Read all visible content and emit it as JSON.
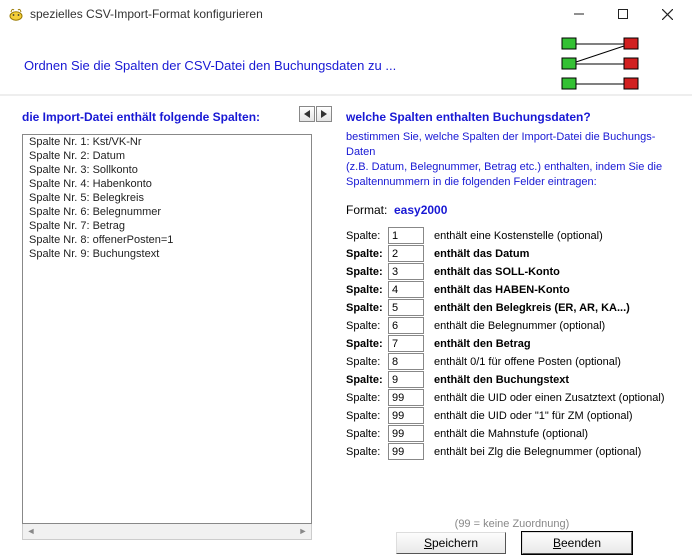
{
  "window": {
    "title": "spezielles CSV-Import-Format konfigurieren",
    "instruction": "Ordnen Sie die Spalten der CSV-Datei den Buchungsdaten zu ..."
  },
  "left": {
    "title": "die Import-Datei enthält folgende Spalten:",
    "items": [
      "Spalte Nr. 1: Kst/VK-Nr",
      "Spalte Nr. 2: Datum",
      "Spalte Nr. 3: Sollkonto",
      "Spalte Nr. 4: Habenkonto",
      "Spalte Nr. 5: Belegkreis",
      "Spalte Nr. 6: Belegnummer",
      "Spalte Nr. 7: Betrag",
      "Spalte Nr. 8: offenerPosten=1",
      "Spalte Nr. 9: Buchungstext"
    ]
  },
  "right": {
    "title": "welche Spalten enthalten Buchungsdaten?",
    "desc_line1": "bestimmen Sie, welche Spalten der Import-Datei die Buchungs-Daten",
    "desc_line2": "(z.B. Datum, Belegnummer, Betrag etc.) enthalten, indem Sie die",
    "desc_line3": "Spaltennummern in die folgenden Felder eintragen:",
    "format_label": "Format:",
    "format_value": "easy2000",
    "field_label": "Spalte:",
    "fields": [
      {
        "value": "1",
        "desc": "enthält eine Kostenstelle (optional)",
        "bold": false
      },
      {
        "value": "2",
        "desc": "enthält das Datum",
        "bold": true
      },
      {
        "value": "3",
        "desc": "enthält das SOLL-Konto",
        "bold": true
      },
      {
        "value": "4",
        "desc": "enthält das HABEN-Konto",
        "bold": true
      },
      {
        "value": "5",
        "desc": "enthält den Belegkreis (ER, AR, KA...)",
        "bold": true
      },
      {
        "value": "6",
        "desc": "enthält die Belegnummer (optional)",
        "bold": false
      },
      {
        "value": "7",
        "desc": "enthält den Betrag",
        "bold": true
      },
      {
        "value": "8",
        "desc": "enthält 0/1 für offene Posten (optional)",
        "bold": false
      },
      {
        "value": "9",
        "desc": "enthält den Buchungstext",
        "bold": true
      },
      {
        "value": "99",
        "desc": "enthält die UID oder einen Zusatztext (optional)",
        "bold": false
      },
      {
        "value": "99",
        "desc": "enthält die UID oder \"1\" für ZM (optional)",
        "bold": false
      },
      {
        "value": "99",
        "desc": "enthält die Mahnstufe (optional)",
        "bold": false
      },
      {
        "value": "99",
        "desc": "enthält bei Zlg die Belegnummer (optional)",
        "bold": false
      }
    ],
    "hint": "(99 = keine Zuordnung)",
    "save_label": "Speichern",
    "save_accel": "S",
    "close_label": "Beenden",
    "close_accel": "B"
  },
  "colors": {
    "link_blue": "#1818d4",
    "node_green": "#34c034",
    "node_red": "#d22020",
    "node_border": "#000000"
  }
}
